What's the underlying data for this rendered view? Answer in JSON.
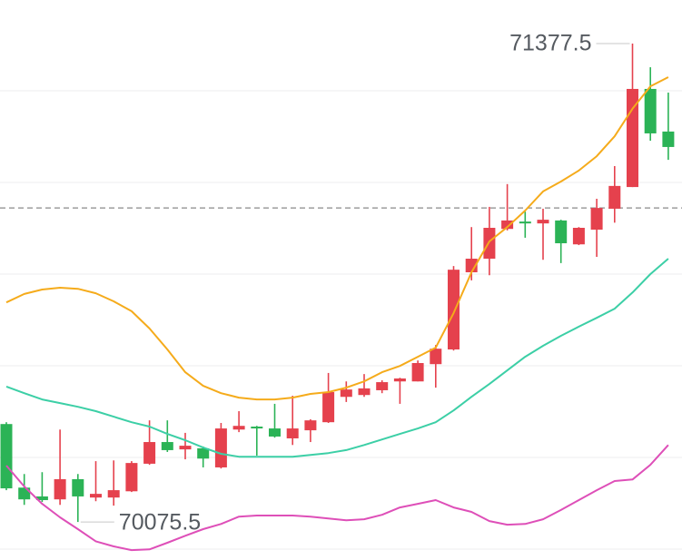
{
  "chart_data": {
    "type": "candlestick",
    "categories": [
      null,
      null,
      null,
      null,
      null,
      null,
      null,
      null,
      null,
      null,
      null,
      null,
      null,
      null,
      null,
      null,
      null,
      null,
      null,
      null,
      null,
      null,
      null,
      null,
      null,
      null,
      null,
      null,
      null,
      null,
      null,
      null,
      null,
      null,
      null,
      null,
      null,
      null
    ],
    "open": [
      70342,
      70169,
      70145,
      70137,
      70192,
      70142,
      70142,
      70159,
      70234,
      70293,
      70273,
      70276,
      70224,
      70327,
      70335,
      70330,
      70303,
      70325,
      70347,
      70416,
      70421,
      70434,
      70458,
      70458,
      70505,
      70545,
      70755,
      70792,
      70873,
      70893,
      70888,
      70896,
      70831,
      70871,
      70928,
      70987,
      71254,
      71138
    ],
    "high": [
      70347,
      70206,
      70211,
      70327,
      70206,
      70241,
      70243,
      70241,
      70352,
      70352,
      70318,
      70281,
      70345,
      70377,
      70337,
      70397,
      70419,
      70355,
      70481,
      70458,
      70478,
      70461,
      70468,
      70515,
      70557,
      70772,
      70878,
      70933,
      70995,
      70920,
      70928,
      70898,
      70878,
      70955,
      71044,
      71377.5,
      71313,
      71244
    ],
    "low": [
      70162,
      70122,
      70130,
      70122,
      70075.5,
      70132,
      70120,
      70157,
      70231,
      70266,
      70246,
      70224,
      70221,
      70320,
      70256,
      70305,
      70285,
      70293,
      70345,
      70402,
      70416,
      70426,
      70397,
      70458,
      70441,
      70542,
      70733,
      70747,
      70869,
      70849,
      70789,
      70780,
      70829,
      70797,
      70890,
      70987,
      71113,
      71061
    ],
    "close": [
      70167,
      70137,
      70135,
      70192,
      70145,
      70152,
      70162,
      70236,
      70293,
      70271,
      70283,
      70248,
      70330,
      70337,
      70330,
      70308,
      70330,
      70352,
      70429,
      70436,
      70439,
      70456,
      70466,
      70508,
      70547,
      70762,
      70792,
      70876,
      70896,
      70888,
      70898,
      70834,
      70876,
      70930,
      70990,
      71254,
      71133,
      71096
    ],
    "up_color": "#e5414d",
    "down_color": "#2bb356",
    "moving_averages": [
      {
        "color": "#f5ab1b",
        "values": [
          70673,
          70696,
          70708,
          70713,
          70710,
          70698,
          70676,
          70649,
          70602,
          70545,
          70483,
          70446,
          70426,
          70414,
          70409,
          70409,
          70414,
          70424,
          70429,
          70441,
          70458,
          70483,
          70500,
          70525,
          70550,
          70644,
          70755,
          70839,
          70878,
          70923,
          70975,
          71002,
          71032,
          71071,
          71125,
          71200,
          71261,
          71286
        ]
      },
      {
        "color": "#3ccfa6",
        "values": [
          70444,
          70426,
          70409,
          70399,
          70389,
          70377,
          70362,
          70347,
          70335,
          70315,
          70298,
          70278,
          70261,
          70253,
          70253,
          70253,
          70253,
          70258,
          70263,
          70271,
          70285,
          70300,
          70315,
          70330,
          70347,
          70379,
          70416,
          70451,
          70488,
          70525,
          70555,
          70582,
          70607,
          70631,
          70656,
          70700,
          70750,
          70792
        ]
      },
      {
        "color": "#de4fb8",
        "values": [
          70229,
          70172,
          70125,
          70088,
          70056,
          70023,
          70009,
          69999,
          70001,
          70019,
          70038,
          70056,
          70070,
          70090,
          70093,
          70093,
          70093,
          70090,
          70085,
          70080,
          70083,
          70095,
          70115,
          70125,
          70135,
          70115,
          70103,
          70078,
          70068,
          70070,
          70083,
          70108,
          70135,
          70162,
          70187,
          70191,
          70231,
          70285
        ]
      }
    ],
    "price_line": 70930,
    "ylim": [
      69972,
      71496
    ]
  }
}
